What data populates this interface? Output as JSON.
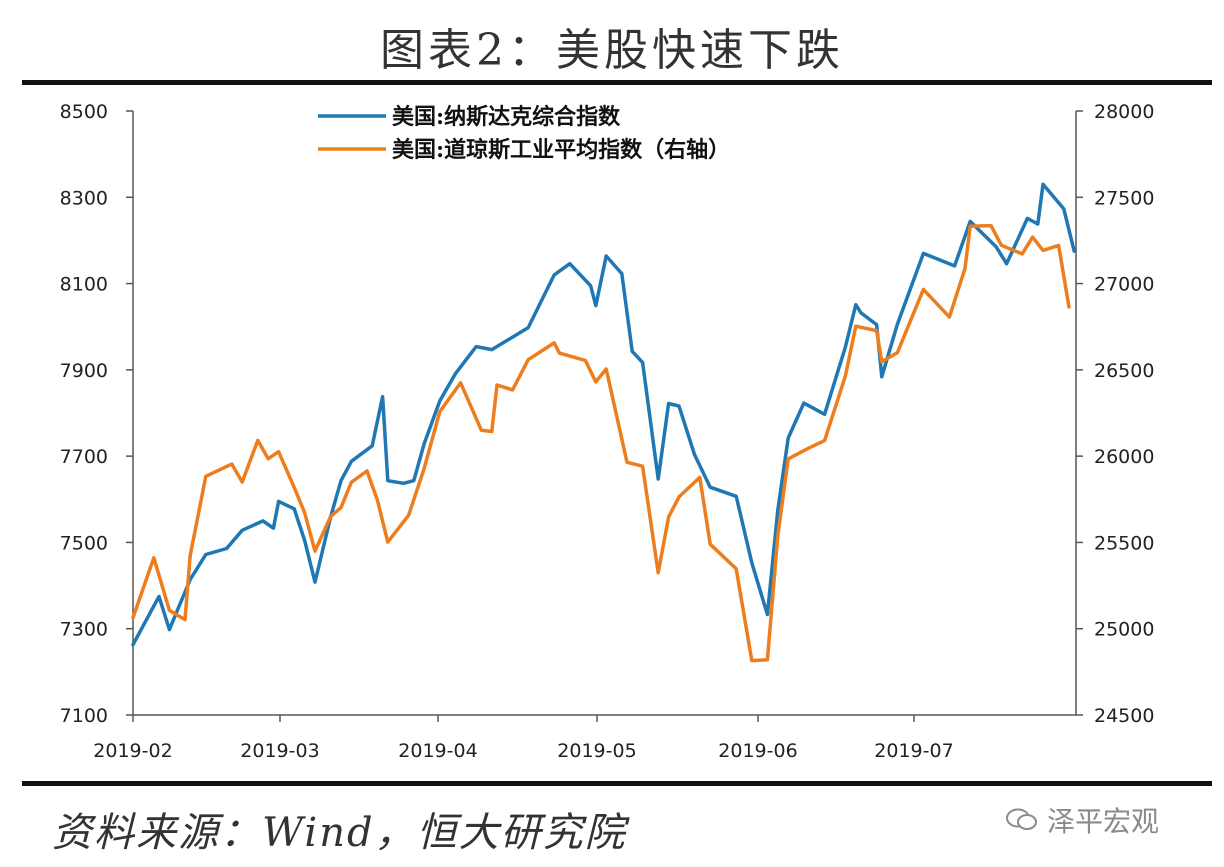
{
  "header": {
    "title": "图表2：美股快速下跌"
  },
  "footer": {
    "source": "资料来源：Wind，恒大研究院",
    "brand": "泽平宏观"
  },
  "colors": {
    "nasdaq": "#1f77b4",
    "dow": "#ed7d1d",
    "axis": "#555555"
  },
  "chart_data": {
    "type": "line",
    "x_ticks": [
      "2019-02",
      "2019-03",
      "2019-04",
      "2019-05",
      "2019-06",
      "2019-07"
    ],
    "y_left": {
      "min": 7100,
      "max": 8500,
      "ticks": [
        7100,
        7300,
        7500,
        7700,
        7900,
        8100,
        8300,
        8500
      ]
    },
    "y_right": {
      "min": 24500,
      "max": 28000,
      "ticks": [
        24500,
        25000,
        25500,
        26000,
        26500,
        27000,
        27500,
        28000
      ]
    },
    "legend": {
      "position": "top-center"
    },
    "grid": false,
    "series": [
      {
        "name": "美国:纳斯达克综合指数",
        "axis": "left",
        "color": "#1f77b4",
        "points": [
          [
            "2019-02-01",
            7263
          ],
          [
            "2019-02-06",
            7375
          ],
          [
            "2019-02-08",
            7298
          ],
          [
            "2019-02-12",
            7414
          ],
          [
            "2019-02-15",
            7472
          ],
          [
            "2019-02-19",
            7486
          ],
          [
            "2019-02-22",
            7528
          ],
          [
            "2019-02-26",
            7550
          ],
          [
            "2019-02-28",
            7533
          ],
          [
            "2019-03-01",
            7595
          ],
          [
            "2019-03-04",
            7578
          ],
          [
            "2019-03-06",
            7505
          ],
          [
            "2019-03-08",
            7408
          ],
          [
            "2019-03-11",
            7559
          ],
          [
            "2019-03-13",
            7643
          ],
          [
            "2019-03-15",
            7688
          ],
          [
            "2019-03-19",
            7724
          ],
          [
            "2019-03-21",
            7838
          ],
          [
            "2019-03-22",
            7643
          ],
          [
            "2019-03-25",
            7637
          ],
          [
            "2019-03-27",
            7643
          ],
          [
            "2019-03-29",
            7729
          ],
          [
            "2019-04-01",
            7828
          ],
          [
            "2019-04-04",
            7891
          ],
          [
            "2019-04-08",
            7954
          ],
          [
            "2019-04-11",
            7947
          ],
          [
            "2019-04-15",
            7976
          ],
          [
            "2019-04-18",
            7998
          ],
          [
            "2019-04-23",
            8120
          ],
          [
            "2019-04-26",
            8146
          ],
          [
            "2019-04-30",
            8095
          ],
          [
            "2019-05-01",
            8049
          ],
          [
            "2019-05-03",
            8164
          ],
          [
            "2019-05-06",
            8123
          ],
          [
            "2019-05-08",
            7943
          ],
          [
            "2019-05-10",
            7917
          ],
          [
            "2019-05-13",
            7647
          ],
          [
            "2019-05-15",
            7822
          ],
          [
            "2019-05-17",
            7816
          ],
          [
            "2019-05-20",
            7703
          ],
          [
            "2019-05-23",
            7628
          ],
          [
            "2019-05-28",
            7607
          ],
          [
            "2019-05-31",
            7453
          ],
          [
            "2019-06-03",
            7333
          ],
          [
            "2019-06-05",
            7575
          ],
          [
            "2019-06-07",
            7742
          ],
          [
            "2019-06-10",
            7823
          ],
          [
            "2019-06-14",
            7797
          ],
          [
            "2019-06-18",
            7953
          ],
          [
            "2019-06-20",
            8051
          ],
          [
            "2019-06-21",
            8032
          ],
          [
            "2019-06-24",
            8005
          ],
          [
            "2019-06-25",
            7884
          ],
          [
            "2019-06-28",
            8006
          ],
          [
            "2019-07-03",
            8170
          ],
          [
            "2019-07-09",
            8141
          ],
          [
            "2019-07-12",
            8244
          ],
          [
            "2019-07-17",
            8185
          ],
          [
            "2019-07-19",
            8146
          ],
          [
            "2019-07-23",
            8251
          ],
          [
            "2019-07-25",
            8238
          ],
          [
            "2019-07-26",
            8330
          ],
          [
            "2019-07-30",
            8273
          ],
          [
            "2019-08-01",
            8175
          ]
        ]
      },
      {
        "name": "美国:道琼斯工业平均指数（右轴）",
        "axis": "right",
        "color": "#ed7d1d",
        "points": [
          [
            "2019-02-01",
            25064
          ],
          [
            "2019-02-05",
            25411
          ],
          [
            "2019-02-08",
            25106
          ],
          [
            "2019-02-11",
            25053
          ],
          [
            "2019-02-12",
            25425
          ],
          [
            "2019-02-15",
            25883
          ],
          [
            "2019-02-20",
            25954
          ],
          [
            "2019-02-22",
            25850
          ],
          [
            "2019-02-25",
            26091
          ],
          [
            "2019-02-27",
            25985
          ],
          [
            "2019-03-01",
            26026
          ],
          [
            "2019-03-04",
            25819
          ],
          [
            "2019-03-06",
            25673
          ],
          [
            "2019-03-08",
            25450
          ],
          [
            "2019-03-11",
            25650
          ],
          [
            "2019-03-13",
            25702
          ],
          [
            "2019-03-15",
            25849
          ],
          [
            "2019-03-18",
            25914
          ],
          [
            "2019-03-20",
            25745
          ],
          [
            "2019-03-22",
            25502
          ],
          [
            "2019-03-26",
            25657
          ],
          [
            "2019-03-29",
            25929
          ],
          [
            "2019-04-01",
            26258
          ],
          [
            "2019-04-05",
            26425
          ],
          [
            "2019-04-09",
            26150
          ],
          [
            "2019-04-11",
            26143
          ],
          [
            "2019-04-12",
            26412
          ],
          [
            "2019-04-15",
            26384
          ],
          [
            "2019-04-18",
            26559
          ],
          [
            "2019-04-23",
            26656
          ],
          [
            "2019-04-24",
            26597
          ],
          [
            "2019-04-29",
            26554
          ],
          [
            "2019-05-01",
            26430
          ],
          [
            "2019-05-03",
            26505
          ],
          [
            "2019-05-07",
            25965
          ],
          [
            "2019-05-10",
            25942
          ],
          [
            "2019-05-13",
            25324
          ],
          [
            "2019-05-15",
            25648
          ],
          [
            "2019-05-17",
            25764
          ],
          [
            "2019-05-21",
            25877
          ],
          [
            "2019-05-23",
            25490
          ],
          [
            "2019-05-28",
            25347
          ],
          [
            "2019-05-31",
            24815
          ],
          [
            "2019-06-03",
            24820
          ],
          [
            "2019-06-05",
            25540
          ],
          [
            "2019-06-07",
            25984
          ],
          [
            "2019-06-11",
            26048
          ],
          [
            "2019-06-14",
            26090
          ],
          [
            "2019-06-18",
            26465
          ],
          [
            "2019-06-20",
            26753
          ],
          [
            "2019-06-24",
            26727
          ],
          [
            "2019-06-25",
            26548
          ],
          [
            "2019-06-28",
            26600
          ],
          [
            "2019-07-03",
            26966
          ],
          [
            "2019-07-08",
            26806
          ],
          [
            "2019-07-11",
            27088
          ],
          [
            "2019-07-12",
            27332
          ],
          [
            "2019-07-16",
            27336
          ],
          [
            "2019-07-18",
            27222
          ],
          [
            "2019-07-22",
            27172
          ],
          [
            "2019-07-24",
            27269
          ],
          [
            "2019-07-26",
            27192
          ],
          [
            "2019-07-29",
            27221
          ],
          [
            "2019-07-31",
            26864
          ]
        ]
      }
    ]
  }
}
